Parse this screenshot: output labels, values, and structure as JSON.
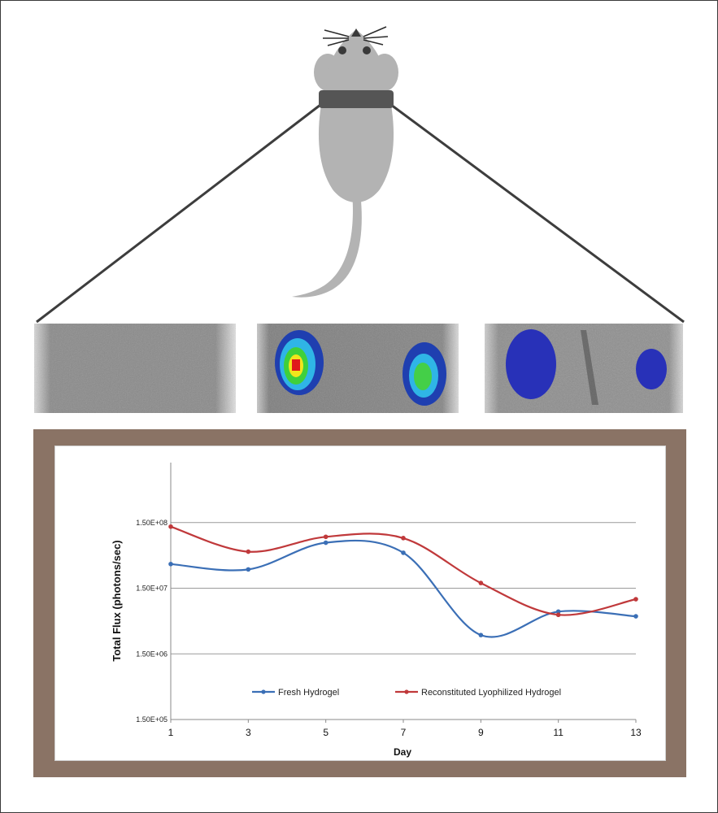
{
  "chart_data": {
    "type": "line",
    "title": "",
    "xlabel": "Day",
    "ylabel": "Total Flux (photons/sec)",
    "x": [
      1,
      3,
      5,
      7,
      9,
      11,
      13
    ],
    "y_scale": "log",
    "ylim": [
      150000,
      1500000000
    ],
    "y_ticks": [
      150000,
      1500000,
      15000000,
      150000000
    ],
    "y_tick_labels": [
      "1.50E+05",
      "1.50E+06",
      "1.50E+07",
      "1.50E+08"
    ],
    "x_tick_labels": [
      "1",
      "3",
      "5",
      "7",
      "9",
      "11",
      "13"
    ],
    "grid": "horizontal major gridlines",
    "legend_position": "bottom, inside plot",
    "smooth": true,
    "series": [
      {
        "name": "Fresh Hydrogel",
        "color": "#3b6fb6",
        "values": [
          35000000,
          29000000,
          74000000,
          52000000,
          2900000,
          6600000,
          5600000
        ]
      },
      {
        "name": "Reconstituted Lyophilized Hydrogel",
        "color": "#c0393b",
        "values": [
          130000000,
          54000000,
          91000000,
          87000000,
          18000000,
          5900000,
          10200000
        ]
      }
    ]
  },
  "figure": {
    "mouse_color": "#b3b3b3",
    "collar_color": "#555555",
    "frame_color": "#8a7365",
    "panels": [
      {
        "name": "no-signal",
        "signal": "none"
      },
      {
        "name": "strong-signal",
        "signal": "high, red/yellow/green core"
      },
      {
        "name": "weak-signal",
        "signal": "low, blue only"
      }
    ]
  }
}
